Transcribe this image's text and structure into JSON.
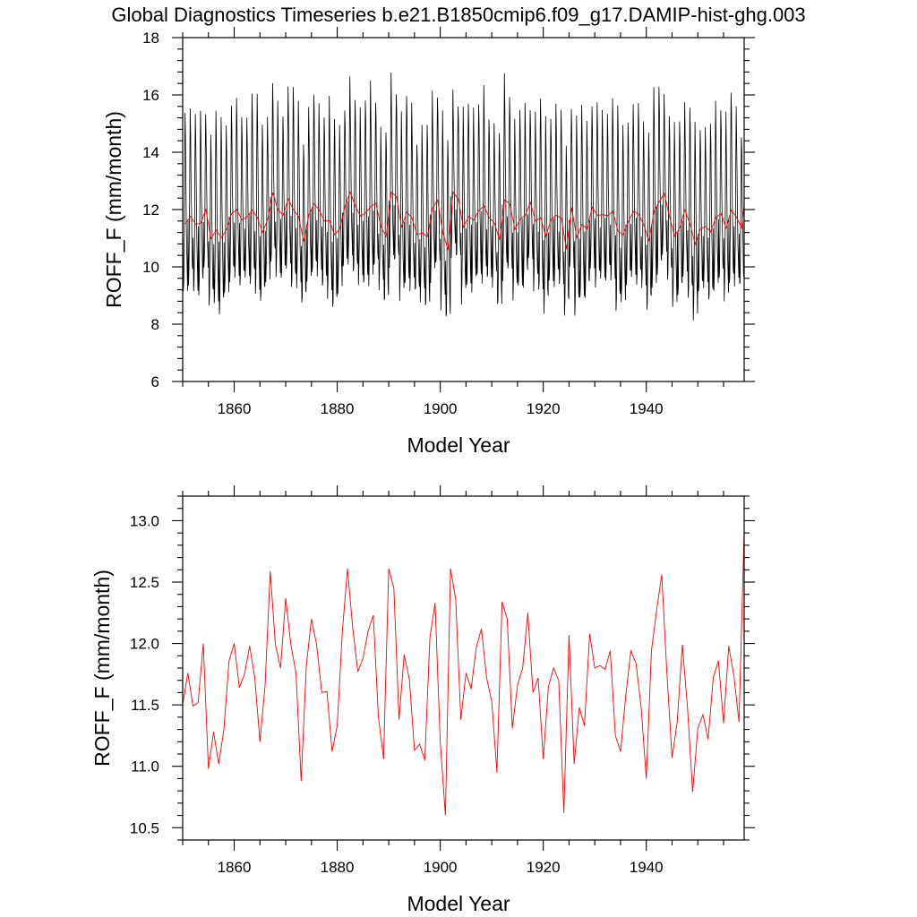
{
  "title": "Global Diagnostics Timeseries b.e21.B1850cmip6.f09_g17.DAMIP-hist-ghg.003",
  "colors": {
    "monthly": "#000000",
    "annual": "#ff0000",
    "frame": "#000000"
  },
  "chart_data": [
    {
      "type": "line",
      "xlabel": "Model Year",
      "ylabel": "ROFF_F (mm/month)",
      "xlim": [
        1850,
        1959
      ],
      "ylim": [
        6,
        18
      ],
      "x_ticks": [
        1860,
        1880,
        1900,
        1920,
        1940
      ],
      "x_tick_labels": [
        "1860",
        "1880",
        "1900",
        "1920",
        "1940"
      ],
      "y_ticks": [
        6,
        8,
        10,
        12,
        14,
        16,
        18
      ],
      "y_tick_labels": [
        "6",
        "8",
        "10",
        "12",
        "14",
        "16",
        "18"
      ],
      "monthly_pattern": [
        11.0,
        8.9,
        9.3,
        10.5,
        13.2,
        15.1,
        14.2,
        12.6,
        11.4,
        10.4,
        9.6,
        9.2
      ],
      "series": [
        {
          "resolution": "monthly",
          "color": "#000000"
        },
        {
          "resolution": "annual",
          "color": "#ff0000",
          "values_ref": "annual_mean"
        }
      ]
    },
    {
      "type": "line",
      "xlabel": "Model Year",
      "ylabel": "ROFF_F (mm/month)",
      "xlim": [
        1850,
        1959
      ],
      "ylim": [
        10.4,
        13.2
      ],
      "x_ticks": [
        1860,
        1880,
        1900,
        1920,
        1940
      ],
      "x_tick_labels": [
        "1860",
        "1880",
        "1900",
        "1920",
        "1940"
      ],
      "y_ticks": [
        10.5,
        11.0,
        11.5,
        12.0,
        12.5,
        13.0
      ],
      "y_tick_labels": [
        "10.5",
        "11.0",
        "11.5",
        "12.0",
        "12.5",
        "13.0"
      ],
      "series": [
        {
          "resolution": "annual",
          "color": "#ff0000",
          "values_ref": "annual_mean"
        }
      ]
    }
  ],
  "annual_mean": {
    "x": [
      1850,
      1851,
      1852,
      1853,
      1854,
      1855,
      1856,
      1857,
      1858,
      1859,
      1860,
      1861,
      1862,
      1863,
      1864,
      1865,
      1866,
      1867,
      1868,
      1869,
      1870,
      1871,
      1872,
      1873,
      1874,
      1875,
      1876,
      1877,
      1878,
      1879,
      1880,
      1881,
      1882,
      1883,
      1884,
      1885,
      1886,
      1887,
      1888,
      1889,
      1890,
      1891,
      1892,
      1893,
      1894,
      1895,
      1896,
      1897,
      1898,
      1899,
      1900,
      1901,
      1902,
      1903,
      1904,
      1905,
      1906,
      1907,
      1908,
      1909,
      1910,
      1911,
      1912,
      1913,
      1914,
      1915,
      1916,
      1917,
      1918,
      1919,
      1920,
      1921,
      1922,
      1923,
      1924,
      1925,
      1926,
      1927,
      1928,
      1929,
      1930,
      1931,
      1932,
      1933,
      1934,
      1935,
      1936,
      1937,
      1938,
      1939,
      1940,
      1941,
      1942,
      1943,
      1944,
      1945,
      1946,
      1947,
      1948,
      1949,
      1950,
      1951,
      1952,
      1953,
      1954,
      1955,
      1956,
      1957,
      1958,
      1959
    ],
    "y": [
      11.5,
      11.76,
      11.49,
      11.52,
      12.0,
      10.98,
      11.28,
      11.02,
      11.3,
      11.86,
      12.0,
      11.64,
      11.75,
      11.98,
      11.72,
      11.2,
      11.66,
      12.59,
      11.99,
      11.8,
      12.37,
      11.99,
      11.76,
      10.88,
      11.82,
      12.2,
      11.99,
      11.6,
      11.61,
      11.12,
      11.33,
      12.1,
      12.61,
      12.13,
      11.77,
      11.88,
      12.1,
      12.23,
      11.4,
      11.06,
      12.61,
      12.45,
      11.38,
      11.91,
      11.71,
      11.13,
      11.18,
      11.05,
      12.05,
      12.33,
      11.2,
      10.6,
      12.61,
      12.36,
      11.38,
      11.76,
      11.63,
      11.97,
      12.12,
      11.72,
      11.53,
      10.95,
      12.34,
      12.2,
      11.31,
      11.66,
      11.8,
      12.25,
      11.6,
      11.72,
      11.06,
      11.65,
      11.8,
      11.7,
      10.62,
      12.07,
      11.02,
      11.48,
      11.33,
      12.08,
      11.8,
      11.82,
      11.79,
      11.94,
      11.25,
      11.12,
      11.57,
      11.94,
      11.84,
      11.48,
      10.9,
      11.94,
      12.27,
      12.56,
      11.76,
      11.07,
      11.36,
      11.99,
      11.48,
      10.79,
      11.31,
      11.42,
      11.22,
      11.72,
      11.86,
      11.35,
      11.98,
      11.74,
      11.36,
      12.92
    ]
  }
}
